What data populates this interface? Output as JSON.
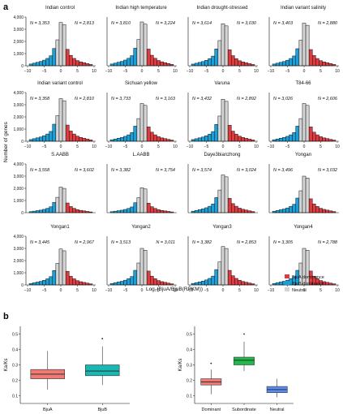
{
  "panel_a": {
    "letter": "a",
    "ylabel": "Number of genes",
    "xlabel": "Log₂(BjuA/BjuB(RPKM))",
    "yticks": [
      "0",
      "1,000",
      "2,000",
      "3,000",
      "4,000"
    ],
    "xticks": [
      "−10",
      "−5",
      "0",
      "5",
      "10"
    ],
    "legend": [
      {
        "label": "BjuA dominance",
        "color": "#e03a3e"
      },
      {
        "label": "BjuB dominance",
        "color": "#1a9fd9"
      },
      {
        "label": "Neutral",
        "color": "#d4d4d4"
      }
    ],
    "panels": [
      {
        "title": "Indian control",
        "nA": "N = 3,353",
        "nB": "N = 2,813"
      },
      {
        "title": "Indian high temperature",
        "nA": "N = 3,810",
        "nB": "N = 3,224"
      },
      {
        "title": "Indian drought-stressed",
        "nA": "N = 3,614",
        "nB": "N = 3,030"
      },
      {
        "title": "Indian variant salinity",
        "nA": "N = 3,403",
        "nB": "N = 2,880"
      },
      {
        "title": "Indian variant control",
        "nA": "N = 3,358",
        "nB": "N = 2,810"
      },
      {
        "title": "Sichuan yellow",
        "nA": "N = 3,733",
        "nB": "N = 3,163"
      },
      {
        "title": "Varuna",
        "nA": "N = 3,432",
        "nB": "N = 2,892"
      },
      {
        "title": "T84-66",
        "nA": "N = 3,026",
        "nB": "N = 2,606"
      },
      {
        "title": "S.AABB",
        "nA": "N = 3,558",
        "nB": "N = 3,602"
      },
      {
        "title": "L.AABB",
        "nA": "N = 3,382",
        "nB": "N = 3,754"
      },
      {
        "title": "Daye3bianzhong",
        "nA": "N = 3,574",
        "nB": "N = 3,024"
      },
      {
        "title": "Yongan",
        "nA": "N = 3,496",
        "nB": "N = 3,032"
      },
      {
        "title": "Yongan1",
        "nA": "N = 3,445",
        "nB": "N = 2,967"
      },
      {
        "title": "Yongan2",
        "nA": "N = 3,513",
        "nB": "N = 3,011"
      },
      {
        "title": "Yongan3",
        "nA": "N = 3,382",
        "nB": "N = 2,853"
      },
      {
        "title": "Yongan4",
        "nA": "N = 3,305",
        "nB": "N = 2,788"
      }
    ]
  },
  "panel_b": {
    "letter": "b",
    "ylabel": "Ka/Ks",
    "yticks": [
      "0.1",
      "0.2",
      "0.3",
      "0.4",
      "0.5"
    ]
  },
  "chart_data": [
    {
      "type": "bar",
      "description_source": "panel a histograms (same bin shape applied per panel, scaled by peak)",
      "bins_x": [
        -9,
        -8,
        -7,
        -6,
        -5,
        -4,
        -3,
        -2,
        -1,
        0,
        1,
        2,
        3,
        4,
        5,
        6,
        7,
        8,
        9
      ],
      "bin_class": [
        "B",
        "B",
        "B",
        "B",
        "B",
        "B",
        "B",
        "B",
        "N",
        "N",
        "N",
        "A",
        "A",
        "A",
        "A",
        "A",
        "A",
        "A",
        "A"
      ],
      "bin_shape": [
        0.04,
        0.06,
        0.08,
        0.1,
        0.13,
        0.17,
        0.23,
        0.4,
        0.6,
        1.0,
        0.95,
        0.38,
        0.24,
        0.17,
        0.12,
        0.09,
        0.07,
        0.05,
        0.03
      ],
      "peaks": [
        3550,
        3600,
        3450,
        3500,
        3500,
        3100,
        3450,
        3100,
        2100,
        2050,
        3100,
        3000,
        2950,
        3000,
        3150,
        3000
      ],
      "ylim": [
        0,
        4000
      ],
      "xlim": [
        -10,
        10
      ]
    },
    {
      "type": "box",
      "categories": [
        "BjuA",
        "BjuB"
      ],
      "colors": [
        "#f07a74",
        "#19b8b3"
      ],
      "boxes": [
        {
          "min": 0.14,
          "q1": 0.21,
          "median": 0.24,
          "q3": 0.27,
          "max": 0.39,
          "outliers": []
        },
        {
          "min": 0.17,
          "q1": 0.23,
          "median": 0.26,
          "q3": 0.3,
          "max": 0.42,
          "outliers": [
            0.47
          ]
        }
      ],
      "ylim": [
        0.05,
        0.55
      ]
    },
    {
      "type": "box",
      "categories": [
        "Dominant",
        "Subordinate",
        "Neutral"
      ],
      "colors": [
        "#f07a74",
        "#21b94a",
        "#5b8ef0"
      ],
      "boxes": [
        {
          "min": 0.11,
          "q1": 0.17,
          "median": 0.19,
          "q3": 0.21,
          "max": 0.27,
          "outliers": [
            0.31
          ]
        },
        {
          "min": 0.26,
          "q1": 0.3,
          "median": 0.33,
          "q3": 0.35,
          "max": 0.45,
          "outliers": [
            0.5
          ]
        },
        {
          "min": 0.09,
          "q1": 0.12,
          "median": 0.14,
          "q3": 0.16,
          "max": 0.21,
          "outliers": []
        }
      ],
      "ylim": [
        0.05,
        0.55
      ]
    }
  ]
}
